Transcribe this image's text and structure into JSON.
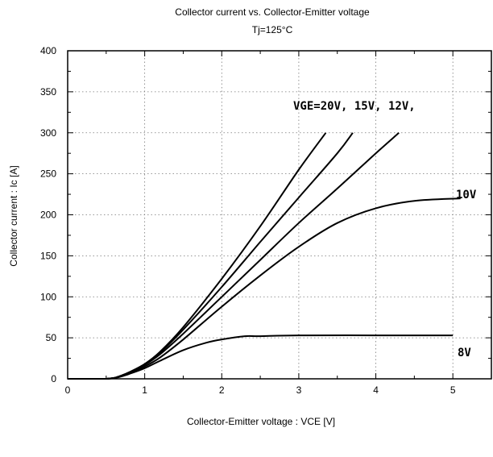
{
  "chart_data": {
    "type": "line",
    "title": "Collector current  vs.  Collector-Emitter  voltage",
    "subtitle": "Tj=125°C",
    "xlabel": "Collector-Emitter  voltage  :  VCE [V]",
    "ylabel": "Collector  current  :  Ic [A]",
    "xlim": [
      0,
      5.5
    ],
    "ylim": [
      0,
      400
    ],
    "xticks": [
      0,
      1,
      2,
      3,
      4,
      5
    ],
    "yticks": [
      0,
      50,
      100,
      150,
      200,
      250,
      300,
      350,
      400
    ],
    "grid": true,
    "series": [
      {
        "name": "20V",
        "color": "#000000",
        "x": [
          0.5,
          0.6,
          0.7,
          0.8,
          1.0,
          1.2,
          1.5,
          2.0,
          2.5,
          3.0,
          3.35
        ],
        "y": [
          0,
          1,
          4,
          8,
          18,
          33,
          63,
          122,
          186,
          255,
          300
        ]
      },
      {
        "name": "15V",
        "color": "#000000",
        "x": [
          0.5,
          0.6,
          0.7,
          0.8,
          1.0,
          1.2,
          1.5,
          2.0,
          2.5,
          3.0,
          3.5,
          3.7
        ],
        "y": [
          0,
          1,
          4,
          8,
          18,
          32,
          60,
          112,
          167,
          221,
          275,
          300
        ]
      },
      {
        "name": "12V",
        "color": "#000000",
        "x": [
          0.5,
          0.6,
          0.7,
          0.8,
          1.0,
          1.2,
          1.5,
          2.0,
          2.5,
          3.0,
          3.5,
          4.0,
          4.3
        ],
        "y": [
          0,
          1,
          4,
          8,
          17,
          30,
          55,
          100,
          145,
          190,
          232,
          275,
          300
        ]
      },
      {
        "name": "10V",
        "color": "#000000",
        "x": [
          0.5,
          0.6,
          0.7,
          0.8,
          1.0,
          1.2,
          1.5,
          2.0,
          2.5,
          3.0,
          3.5,
          4.0,
          4.5,
          5.1
        ],
        "y": [
          0,
          1,
          3,
          7,
          15,
          26,
          48,
          88,
          126,
          161,
          190,
          208,
          217,
          220
        ]
      },
      {
        "name": "8V",
        "color": "#000000",
        "x": [
          0.5,
          0.6,
          0.7,
          0.8,
          1.0,
          1.2,
          1.5,
          1.8,
          2.0,
          2.3,
          2.5,
          3.0,
          4.0,
          5.0
        ],
        "y": [
          0,
          1,
          3,
          6,
          13,
          22,
          35,
          44,
          48,
          52,
          52,
          53,
          53,
          53
        ]
      }
    ],
    "annotations": [
      "VGE=20V, 15V, 12V,",
      "10V",
      "8V"
    ]
  }
}
